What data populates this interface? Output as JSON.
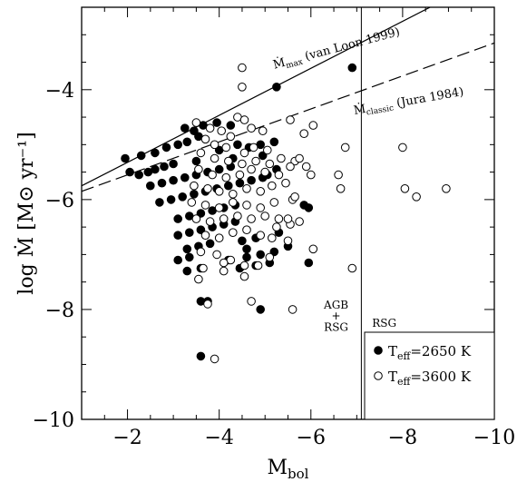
{
  "chart_data": {
    "type": "scatter",
    "title": "",
    "xlabel": "M_bol",
    "ylabel": "log Ṁ [M⊙ yr⁻¹]",
    "xlim": [
      -1,
      -10
    ],
    "ylim": [
      -10,
      -2.5
    ],
    "xticks": [
      -2,
      -4,
      -6,
      -8,
      -10
    ],
    "xtick_labels": [
      "−2",
      "−4",
      "−6",
      "−8",
      "−10"
    ],
    "yticks": [
      -4,
      -6,
      -8,
      -10
    ],
    "ytick_labels": [
      "−4",
      "−6",
      "−8",
      "−10"
    ],
    "grid": false,
    "legend_position": "bottom-right",
    "vertical_line_x": -7.1,
    "region_labels": {
      "left_line1": "AGB",
      "left_line2": "+",
      "left_line3": "RSG",
      "right": "RSG"
    },
    "lines": [
      {
        "name": "Ṁmax (van Loon 1999)",
        "style": "solid",
        "x": [
          -1,
          -10
        ],
        "y": [
          -5.75,
          -1.9
        ]
      },
      {
        "name": "Ṁclassic (Jura 1984)",
        "style": "dashed",
        "x": [
          -1,
          -10
        ],
        "y": [
          -5.85,
          -3.15
        ]
      }
    ],
    "line_labels": [
      {
        "main": "Ṁ",
        "sub": "max",
        "rest": " (van Loon 1999)"
      },
      {
        "main": "Ṁ",
        "sub": "classic",
        "rest": " (Jura 1984)"
      }
    ],
    "series": [
      {
        "name": "Teff=2650 K",
        "label_main": "T",
        "label_sub": "eff",
        "label_rest": "=2650 K",
        "marker": "filled-circle",
        "points": [
          [
            -1.95,
            -5.25
          ],
          [
            -2.05,
            -5.5
          ],
          [
            -2.25,
            -5.55
          ],
          [
            -2.45,
            -5.5
          ],
          [
            -2.6,
            -5.45
          ],
          [
            -2.8,
            -5.4
          ],
          [
            -3.0,
            -5.35
          ],
          [
            -2.3,
            -5.2
          ],
          [
            -2.6,
            -5.15
          ],
          [
            -2.85,
            -5.05
          ],
          [
            -3.1,
            -5.0
          ],
          [
            -3.3,
            -4.95
          ],
          [
            -3.55,
            -4.85
          ],
          [
            -2.5,
            -5.75
          ],
          [
            -2.75,
            -5.7
          ],
          [
            -3.0,
            -5.65
          ],
          [
            -3.25,
            -5.6
          ],
          [
            -3.5,
            -5.55
          ],
          [
            -3.75,
            -5.5
          ],
          [
            -4.0,
            -5.45
          ],
          [
            -4.25,
            -5.4
          ],
          [
            -2.7,
            -6.05
          ],
          [
            -2.95,
            -6.0
          ],
          [
            -3.2,
            -5.95
          ],
          [
            -3.45,
            -5.9
          ],
          [
            -3.7,
            -5.85
          ],
          [
            -3.95,
            -5.8
          ],
          [
            -4.2,
            -5.75
          ],
          [
            -4.45,
            -5.7
          ],
          [
            -4.7,
            -5.65
          ],
          [
            -4.95,
            -5.6
          ],
          [
            -3.1,
            -6.35
          ],
          [
            -3.35,
            -6.3
          ],
          [
            -3.6,
            -6.25
          ],
          [
            -3.85,
            -6.2
          ],
          [
            -4.1,
            -6.15
          ],
          [
            -4.35,
            -6.1
          ],
          [
            -3.1,
            -6.65
          ],
          [
            -3.35,
            -6.6
          ],
          [
            -3.6,
            -6.55
          ],
          [
            -3.85,
            -6.5
          ],
          [
            -4.1,
            -6.45
          ],
          [
            -4.35,
            -6.4
          ],
          [
            -3.3,
            -6.9
          ],
          [
            -3.55,
            -6.85
          ],
          [
            -3.8,
            -6.8
          ],
          [
            -4.5,
            -6.75
          ],
          [
            -4.8,
            -6.7
          ],
          [
            -3.1,
            -7.1
          ],
          [
            -3.35,
            -7.05
          ],
          [
            -4.6,
            -7.05
          ],
          [
            -4.9,
            -7.0
          ],
          [
            -5.2,
            -6.95
          ],
          [
            -3.3,
            -7.3
          ],
          [
            -3.6,
            -7.25
          ],
          [
            -4.45,
            -7.25
          ],
          [
            -4.8,
            -7.2
          ],
          [
            -5.1,
            -7.15
          ],
          [
            -5.95,
            -7.15
          ],
          [
            -3.25,
            -4.7
          ],
          [
            -3.45,
            -4.75
          ],
          [
            -3.65,
            -4.65
          ],
          [
            -3.95,
            -4.6
          ],
          [
            -4.25,
            -4.65
          ],
          [
            -4.0,
            -5.1
          ],
          [
            -4.4,
            -5.0
          ],
          [
            -4.65,
            -5.05
          ],
          [
            -4.9,
            -5.0
          ],
          [
            -5.2,
            -4.95
          ],
          [
            -3.5,
            -5.3
          ],
          [
            -4.3,
            -5.25
          ],
          [
            -4.95,
            -5.2
          ],
          [
            -5.05,
            -5.55
          ],
          [
            -5.25,
            -5.45
          ],
          [
            -5.85,
            -6.1
          ],
          [
            -5.95,
            -6.15
          ],
          [
            -4.6,
            -6.9
          ],
          [
            -5.5,
            -6.85
          ],
          [
            -5.3,
            -6.6
          ],
          [
            -4.2,
            -7.1
          ],
          [
            -5.25,
            -3.95
          ],
          [
            -6.9,
            -3.6
          ],
          [
            -3.6,
            -7.85
          ],
          [
            -3.75,
            -7.85
          ],
          [
            -4.9,
            -8.0
          ],
          [
            -3.6,
            -8.85
          ]
        ]
      },
      {
        "name": "Teff=3600 K",
        "label_main": "T",
        "label_sub": "eff",
        "label_rest": "=3600 K",
        "marker": "open-circle",
        "points": [
          [
            -3.5,
            -4.6
          ],
          [
            -3.8,
            -4.7
          ],
          [
            -4.05,
            -4.75
          ],
          [
            -4.25,
            -4.85
          ],
          [
            -4.4,
            -4.5
          ],
          [
            -4.55,
            -4.55
          ],
          [
            -4.7,
            -4.7
          ],
          [
            -4.95,
            -4.75
          ],
          [
            -3.7,
            -4.9
          ],
          [
            -3.9,
            -5.0
          ],
          [
            -4.15,
            -5.05
          ],
          [
            -4.55,
            -5.15
          ],
          [
            -4.75,
            -5.05
          ],
          [
            -5.05,
            -5.1
          ],
          [
            -5.55,
            -4.55
          ],
          [
            -3.6,
            -5.15
          ],
          [
            -3.9,
            -5.25
          ],
          [
            -4.2,
            -5.3
          ],
          [
            -4.5,
            -5.35
          ],
          [
            -4.8,
            -5.3
          ],
          [
            -5.1,
            -5.35
          ],
          [
            -5.35,
            -5.25
          ],
          [
            -5.65,
            -5.3
          ],
          [
            -3.55,
            -5.45
          ],
          [
            -3.85,
            -5.55
          ],
          [
            -4.15,
            -5.6
          ],
          [
            -4.45,
            -5.55
          ],
          [
            -4.7,
            -5.45
          ],
          [
            -5.0,
            -5.5
          ],
          [
            -5.3,
            -5.55
          ],
          [
            -5.55,
            -5.4
          ],
          [
            -3.45,
            -5.75
          ],
          [
            -3.75,
            -5.8
          ],
          [
            -4.0,
            -5.85
          ],
          [
            -4.3,
            -5.9
          ],
          [
            -4.6,
            -5.8
          ],
          [
            -4.9,
            -5.85
          ],
          [
            -5.15,
            -5.75
          ],
          [
            -5.45,
            -5.7
          ],
          [
            -3.4,
            -6.05
          ],
          [
            -3.7,
            -6.1
          ],
          [
            -4.0,
            -6.15
          ],
          [
            -4.3,
            -6.05
          ],
          [
            -4.6,
            -6.1
          ],
          [
            -4.9,
            -6.15
          ],
          [
            -5.2,
            -6.05
          ],
          [
            -5.6,
            -6.0
          ],
          [
            -3.5,
            -6.35
          ],
          [
            -3.8,
            -6.4
          ],
          [
            -4.1,
            -6.35
          ],
          [
            -4.4,
            -6.3
          ],
          [
            -4.7,
            -6.35
          ],
          [
            -5.0,
            -6.3
          ],
          [
            -5.3,
            -6.35
          ],
          [
            -5.55,
            -6.45
          ],
          [
            -3.7,
            -6.65
          ],
          [
            -4.0,
            -6.7
          ],
          [
            -4.3,
            -6.6
          ],
          [
            -4.6,
            -6.55
          ],
          [
            -4.9,
            -6.65
          ],
          [
            -5.15,
            -6.7
          ],
          [
            -3.6,
            -6.95
          ],
          [
            -3.95,
            -7.0
          ],
          [
            -4.25,
            -7.1
          ],
          [
            -4.55,
            -7.2
          ],
          [
            -5.1,
            -7.05
          ],
          [
            -3.65,
            -7.25
          ],
          [
            -4.1,
            -7.3
          ],
          [
            -4.55,
            -7.4
          ],
          [
            -4.85,
            -7.2
          ],
          [
            -3.55,
            -7.45
          ],
          [
            -4.1,
            -7.15
          ],
          [
            -5.25,
            -6.5
          ],
          [
            -5.5,
            -6.75
          ],
          [
            -6.05,
            -4.65
          ],
          [
            -5.85,
            -4.8
          ],
          [
            -5.75,
            -5.25
          ],
          [
            -5.9,
            -5.4
          ],
          [
            -6.0,
            -5.55
          ],
          [
            -5.65,
            -5.95
          ],
          [
            -5.5,
            -6.35
          ],
          [
            -5.75,
            -6.4
          ],
          [
            -6.05,
            -6.9
          ],
          [
            -4.5,
            -3.6
          ],
          [
            -4.5,
            -3.95
          ],
          [
            -6.75,
            -5.05
          ],
          [
            -6.6,
            -5.55
          ],
          [
            -6.65,
            -5.8
          ],
          [
            -6.9,
            -7.25
          ],
          [
            -8.0,
            -5.05
          ],
          [
            -8.05,
            -5.8
          ],
          [
            -8.3,
            -5.95
          ],
          [
            -8.95,
            -5.8
          ],
          [
            -3.75,
            -7.9
          ],
          [
            -4.7,
            -7.85
          ],
          [
            -5.6,
            -8.0
          ],
          [
            -3.9,
            -8.9
          ]
        ]
      }
    ]
  }
}
